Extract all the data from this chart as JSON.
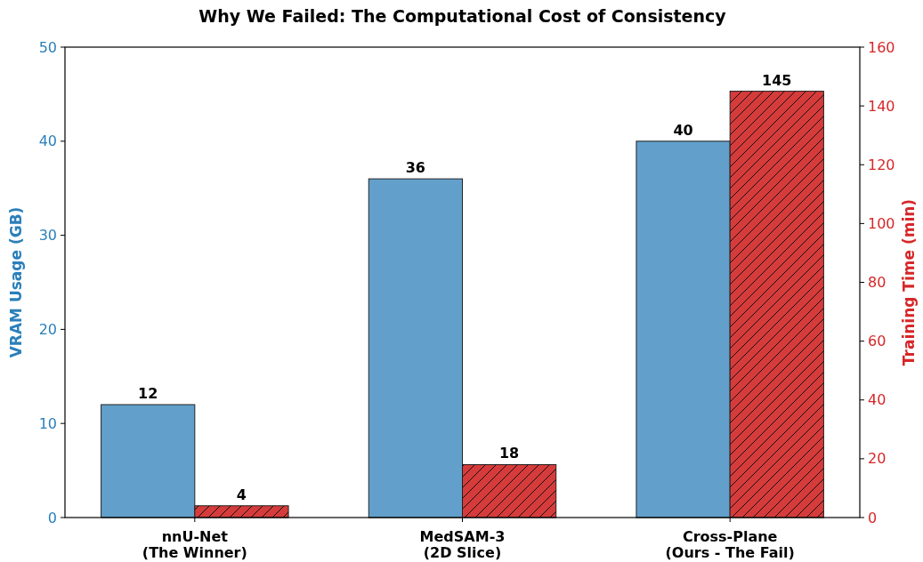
{
  "chart_data": {
    "type": "bar",
    "title": "Why We Failed: The Computational Cost of Consistency",
    "ylabel": "VRAM Usage (GB)",
    "y2label": "Training Time (min)",
    "categories": [
      "nnU-Net\n(The Winner)",
      "MedSAM-3\n(2D Slice)",
      "Cross-Plane\n(Ours - The Fail)"
    ],
    "series": [
      {
        "color": "#62a0cb",
        "values": [
          12,
          36,
          40
        ]
      },
      {
        "color": "#d63b3b",
        "values": [
          4,
          18,
          145
        ],
        "axis": "y2"
      }
    ],
    "ylim": [
      0,
      50
    ],
    "yticks": [
      0,
      10,
      20,
      30,
      40,
      50
    ],
    "y2lim": [
      0,
      160
    ],
    "y2ticks": [
      0,
      20,
      40,
      60,
      80,
      100,
      120,
      140,
      160
    ],
    "data_labels": true,
    "grid": false
  }
}
